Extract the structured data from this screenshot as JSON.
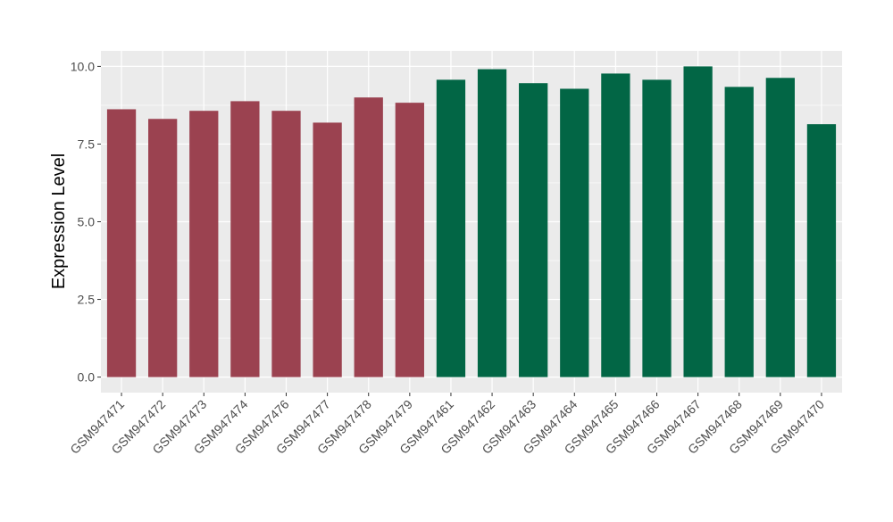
{
  "chart_data": {
    "type": "bar",
    "title": "",
    "xlabel": "",
    "ylabel": "Expression Level",
    "ylim": [
      -0.5,
      10.5
    ],
    "yticks": [
      "0.0",
      "2.5",
      "5.0",
      "7.5",
      "10.0"
    ],
    "ytick_values": [
      0,
      2.5,
      5,
      7.5,
      10
    ],
    "grid": true,
    "legend": "none",
    "categories": [
      "GSM947471",
      "GSM947472",
      "GSM947473",
      "GSM947474",
      "GSM947476",
      "GSM947477",
      "GSM947478",
      "GSM947479",
      "GSM947461",
      "GSM947462",
      "GSM947463",
      "GSM947464",
      "GSM947465",
      "GSM947466",
      "GSM947467",
      "GSM947468",
      "GSM947469",
      "GSM947470"
    ],
    "values": [
      8.62,
      8.31,
      8.57,
      8.88,
      8.57,
      8.19,
      9.0,
      8.83,
      9.57,
      9.91,
      9.46,
      9.28,
      9.77,
      9.57,
      10.0,
      9.34,
      9.63,
      8.14
    ],
    "groups": [
      "a",
      "a",
      "a",
      "a",
      "a",
      "a",
      "a",
      "a",
      "b",
      "b",
      "b",
      "b",
      "b",
      "b",
      "b",
      "b",
      "b",
      "b"
    ],
    "colors": {
      "a": "#9B4250",
      "b": "#026645"
    },
    "panel_background": "#EBEBEB",
    "gridline_color": "#FFFFFF"
  }
}
